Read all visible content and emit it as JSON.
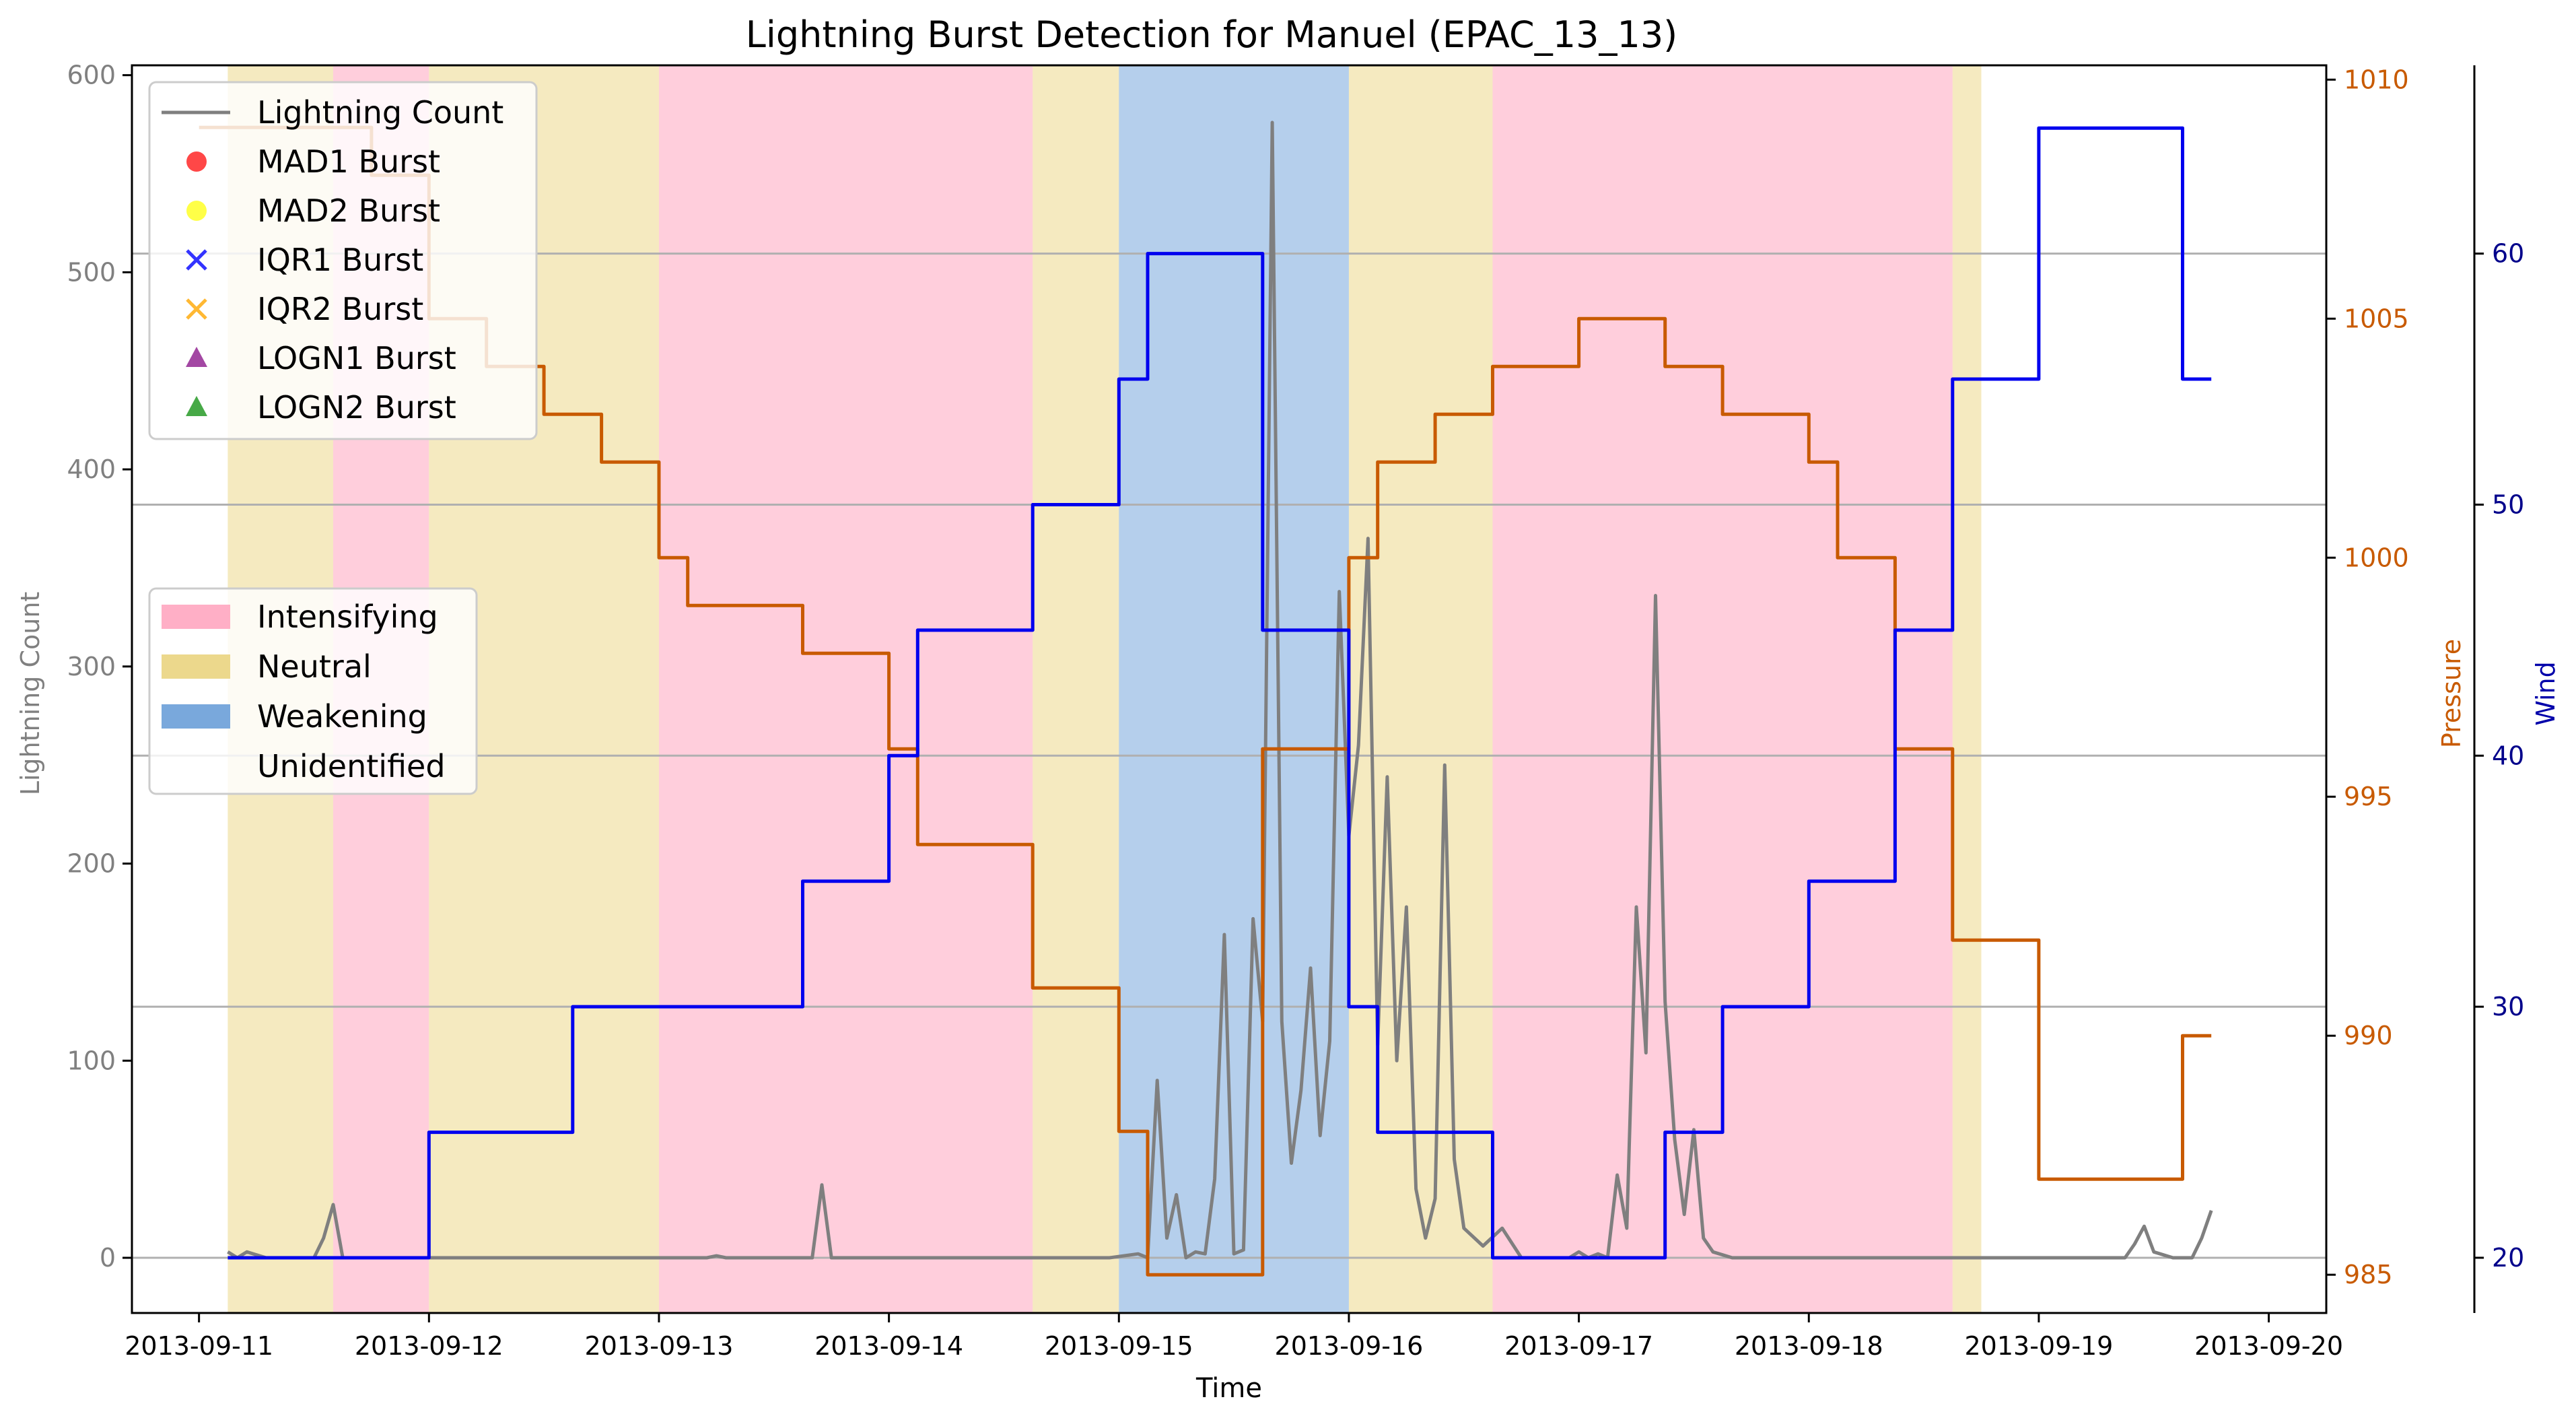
{
  "chart_data": {
    "type": "line",
    "title": "Lightning Burst Detection for Manuel (EPAC_13_13)",
    "xlabel": "Time",
    "ylabel_left": "Lightning Count",
    "ylabel_pressure": "Pressure",
    "ylabel_wind": "Wind",
    "x_domain": [
      "2013-09-10 17:00",
      "2013-09-20 06:00"
    ],
    "x_ticks": [
      "2013-09-11",
      "2013-09-12",
      "2013-09-13",
      "2013-09-14",
      "2013-09-15",
      "2013-09-16",
      "2013-09-17",
      "2013-09-18",
      "2013-09-19",
      "2013-09-20"
    ],
    "left_axis": {
      "ylim": [
        -28,
        605
      ],
      "ticks": [
        0,
        100,
        200,
        300,
        400,
        500,
        600
      ]
    },
    "pressure_axis": {
      "ylim": [
        984.2,
        1010.3
      ],
      "ticks": [
        985,
        990,
        995,
        1000,
        1005,
        1010
      ]
    },
    "wind_axis": {
      "ylim": [
        17.8,
        67.5
      ],
      "ticks": [
        20,
        30,
        40,
        50,
        60
      ]
    },
    "grid": "horizontal lines at wind-axis ticks",
    "colors": {
      "intensifying": "#ffa6c0",
      "neutral": "#ecd88c",
      "weakening": "#79a8dc",
      "lightning": "#7f7f7f",
      "pressure": "#c85a00",
      "wind": "#0000ee",
      "left_axis": "#808080",
      "grid": "#b0b0b0"
    },
    "stages": [
      {
        "stage": "neutral",
        "start": "2013-09-11 03:00",
        "end": "2013-09-11 14:00"
      },
      {
        "stage": "intensifying",
        "start": "2013-09-11 14:00",
        "end": "2013-09-12 00:00"
      },
      {
        "stage": "neutral",
        "start": "2013-09-12 00:00",
        "end": "2013-09-13 00:00"
      },
      {
        "stage": "intensifying",
        "start": "2013-09-13 00:00",
        "end": "2013-09-14 15:00"
      },
      {
        "stage": "neutral",
        "start": "2013-09-14 15:00",
        "end": "2013-09-15 00:00"
      },
      {
        "stage": "weakening",
        "start": "2013-09-15 00:00",
        "end": "2013-09-16 00:00"
      },
      {
        "stage": "neutral",
        "start": "2013-09-16 00:00",
        "end": "2013-09-16 15:00"
      },
      {
        "stage": "intensifying",
        "start": "2013-09-16 15:00",
        "end": "2013-09-18 15:00"
      },
      {
        "stage": "neutral",
        "start": "2013-09-18 15:00",
        "end": "2013-09-18 18:00"
      }
    ],
    "series": [
      {
        "name": "Lightning Count",
        "axis": "left",
        "points": [
          [
            "2013-09-11 03:00",
            3
          ],
          [
            "2013-09-11 04:00",
            0
          ],
          [
            "2013-09-11 05:00",
            3
          ],
          [
            "2013-09-11 07:00",
            0
          ],
          [
            "2013-09-11 12:00",
            0
          ],
          [
            "2013-09-11 13:00",
            10
          ],
          [
            "2013-09-11 14:00",
            27
          ],
          [
            "2013-09-11 15:00",
            0
          ],
          [
            "2013-09-12 12:00",
            0
          ],
          [
            "2013-09-13 05:00",
            0
          ],
          [
            "2013-09-13 06:00",
            1
          ],
          [
            "2013-09-13 07:00",
            0
          ],
          [
            "2013-09-13 16:00",
            0
          ],
          [
            "2013-09-13 17:00",
            37
          ],
          [
            "2013-09-13 18:00",
            0
          ],
          [
            "2013-09-14 14:00",
            0
          ],
          [
            "2013-09-14 23:00",
            0
          ],
          [
            "2013-09-15 02:00",
            2
          ],
          [
            "2013-09-15 03:00",
            0
          ],
          [
            "2013-09-15 04:00",
            90
          ],
          [
            "2013-09-15 05:00",
            10
          ],
          [
            "2013-09-15 06:00",
            32
          ],
          [
            "2013-09-15 07:00",
            0
          ],
          [
            "2013-09-15 08:00",
            3
          ],
          [
            "2013-09-15 09:00",
            2
          ],
          [
            "2013-09-15 10:00",
            40
          ],
          [
            "2013-09-15 11:00",
            164
          ],
          [
            "2013-09-15 12:00",
            2
          ],
          [
            "2013-09-15 13:00",
            4
          ],
          [
            "2013-09-15 14:00",
            172
          ],
          [
            "2013-09-15 15:00",
            120
          ],
          [
            "2013-09-15 16:00",
            576
          ],
          [
            "2013-09-15 17:00",
            120
          ],
          [
            "2013-09-15 18:00",
            48
          ],
          [
            "2013-09-15 19:00",
            85
          ],
          [
            "2013-09-15 20:00",
            147
          ],
          [
            "2013-09-15 21:00",
            62
          ],
          [
            "2013-09-15 22:00",
            110
          ],
          [
            "2013-09-15 23:00",
            338
          ],
          [
            "2013-09-16 00:00",
            214
          ],
          [
            "2013-09-16 01:00",
            260
          ],
          [
            "2013-09-16 02:00",
            365
          ],
          [
            "2013-09-16 03:00",
            108
          ],
          [
            "2013-09-16 04:00",
            244
          ],
          [
            "2013-09-16 05:00",
            100
          ],
          [
            "2013-09-16 06:00",
            178
          ],
          [
            "2013-09-16 07:00",
            35
          ],
          [
            "2013-09-16 08:00",
            10
          ],
          [
            "2013-09-16 09:00",
            30
          ],
          [
            "2013-09-16 10:00",
            250
          ],
          [
            "2013-09-16 11:00",
            50
          ],
          [
            "2013-09-16 12:00",
            15
          ],
          [
            "2013-09-16 14:00",
            6
          ],
          [
            "2013-09-16 16:00",
            15
          ],
          [
            "2013-09-16 18:00",
            0
          ],
          [
            "2013-09-16 23:00",
            0
          ],
          [
            "2013-09-17 00:00",
            3
          ],
          [
            "2013-09-17 01:00",
            0
          ],
          [
            "2013-09-17 02:00",
            2
          ],
          [
            "2013-09-17 03:00",
            0
          ],
          [
            "2013-09-17 04:00",
            42
          ],
          [
            "2013-09-17 05:00",
            15
          ],
          [
            "2013-09-17 06:00",
            178
          ],
          [
            "2013-09-17 07:00",
            104
          ],
          [
            "2013-09-17 08:00",
            336
          ],
          [
            "2013-09-17 09:00",
            130
          ],
          [
            "2013-09-17 10:00",
            60
          ],
          [
            "2013-09-17 11:00",
            22
          ],
          [
            "2013-09-17 12:00",
            65
          ],
          [
            "2013-09-17 13:00",
            10
          ],
          [
            "2013-09-17 14:00",
            3
          ],
          [
            "2013-09-17 16:00",
            0
          ],
          [
            "2013-09-18 16:00",
            0
          ],
          [
            "2013-09-19 09:00",
            0
          ],
          [
            "2013-09-19 10:00",
            7
          ],
          [
            "2013-09-19 11:00",
            16
          ],
          [
            "2013-09-19 12:00",
            3
          ],
          [
            "2013-09-19 14:00",
            0
          ],
          [
            "2013-09-19 16:00",
            0
          ],
          [
            "2013-09-19 17:00",
            10
          ],
          [
            "2013-09-19 18:00",
            24
          ]
        ]
      },
      {
        "name": "Pressure",
        "axis": "pressure",
        "points": [
          [
            "2013-09-11 00:00",
            1009
          ],
          [
            "2013-09-11 18:00",
            1009
          ],
          [
            "2013-09-11 18:00",
            1008
          ],
          [
            "2013-09-12 00:00",
            1008
          ],
          [
            "2013-09-12 00:00",
            1005
          ],
          [
            "2013-09-12 06:00",
            1005
          ],
          [
            "2013-09-12 06:00",
            1004
          ],
          [
            "2013-09-12 12:00",
            1004
          ],
          [
            "2013-09-12 12:00",
            1003
          ],
          [
            "2013-09-12 18:00",
            1003
          ],
          [
            "2013-09-12 18:00",
            1002
          ],
          [
            "2013-09-13 00:00",
            1002
          ],
          [
            "2013-09-13 00:00",
            1000
          ],
          [
            "2013-09-13 03:00",
            1000
          ],
          [
            "2013-09-13 03:00",
            999
          ],
          [
            "2013-09-13 15:00",
            999
          ],
          [
            "2013-09-13 15:00",
            998
          ],
          [
            "2013-09-14 00:00",
            998
          ],
          [
            "2013-09-14 00:00",
            996
          ],
          [
            "2013-09-14 03:00",
            996
          ],
          [
            "2013-09-14 03:00",
            994
          ],
          [
            "2013-09-14 15:00",
            994
          ],
          [
            "2013-09-14 15:00",
            991
          ],
          [
            "2013-09-15 00:00",
            991
          ],
          [
            "2013-09-15 00:00",
            988
          ],
          [
            "2013-09-15 03:00",
            988
          ],
          [
            "2013-09-15 03:00",
            985
          ],
          [
            "2013-09-15 15:00",
            985
          ],
          [
            "2013-09-15 15:00",
            996
          ],
          [
            "2013-09-16 00:00",
            996
          ],
          [
            "2013-09-16 00:00",
            1000
          ],
          [
            "2013-09-16 03:00",
            1000
          ],
          [
            "2013-09-16 03:00",
            1002
          ],
          [
            "2013-09-16 09:00",
            1002
          ],
          [
            "2013-09-16 09:00",
            1003
          ],
          [
            "2013-09-16 15:00",
            1003
          ],
          [
            "2013-09-16 15:00",
            1004
          ],
          [
            "2013-09-17 00:00",
            1004
          ],
          [
            "2013-09-17 00:00",
            1005
          ],
          [
            "2013-09-17 09:00",
            1005
          ],
          [
            "2013-09-17 09:00",
            1004
          ],
          [
            "2013-09-17 15:00",
            1004
          ],
          [
            "2013-09-17 15:00",
            1003
          ],
          [
            "2013-09-18 00:00",
            1003
          ],
          [
            "2013-09-18 00:00",
            1002
          ],
          [
            "2013-09-18 03:00",
            1002
          ],
          [
            "2013-09-18 03:00",
            1000
          ],
          [
            "2013-09-18 09:00",
            1000
          ],
          [
            "2013-09-18 09:00",
            996
          ],
          [
            "2013-09-18 15:00",
            996
          ],
          [
            "2013-09-18 15:00",
            992
          ],
          [
            "2013-09-19 00:00",
            992
          ],
          [
            "2013-09-19 00:00",
            987
          ],
          [
            "2013-09-19 15:00",
            987
          ],
          [
            "2013-09-19 15:00",
            990
          ],
          [
            "2013-09-19 18:00",
            990
          ]
        ]
      },
      {
        "name": "Wind",
        "axis": "wind",
        "points": [
          [
            "2013-09-11 03:00",
            20
          ],
          [
            "2013-09-12 00:00",
            20
          ],
          [
            "2013-09-12 00:00",
            25
          ],
          [
            "2013-09-12 15:00",
            25
          ],
          [
            "2013-09-12 15:00",
            30
          ],
          [
            "2013-09-13 15:00",
            30
          ],
          [
            "2013-09-13 15:00",
            35
          ],
          [
            "2013-09-14 00:00",
            35
          ],
          [
            "2013-09-14 00:00",
            40
          ],
          [
            "2013-09-14 03:00",
            40
          ],
          [
            "2013-09-14 03:00",
            45
          ],
          [
            "2013-09-14 15:00",
            45
          ],
          [
            "2013-09-14 15:00",
            50
          ],
          [
            "2013-09-15 00:00",
            50
          ],
          [
            "2013-09-15 00:00",
            55
          ],
          [
            "2013-09-15 03:00",
            55
          ],
          [
            "2013-09-15 03:00",
            60
          ],
          [
            "2013-09-15 15:00",
            60
          ],
          [
            "2013-09-15 15:00",
            45
          ],
          [
            "2013-09-16 00:00",
            45
          ],
          [
            "2013-09-16 00:00",
            30
          ],
          [
            "2013-09-16 03:00",
            30
          ],
          [
            "2013-09-16 03:00",
            25
          ],
          [
            "2013-09-16 15:00",
            25
          ],
          [
            "2013-09-16 15:00",
            20
          ],
          [
            "2013-09-17 09:00",
            20
          ],
          [
            "2013-09-17 09:00",
            25
          ],
          [
            "2013-09-17 15:00",
            25
          ],
          [
            "2013-09-17 15:00",
            30
          ],
          [
            "2013-09-18 00:00",
            30
          ],
          [
            "2013-09-18 00:00",
            35
          ],
          [
            "2013-09-18 09:00",
            35
          ],
          [
            "2013-09-18 09:00",
            45
          ],
          [
            "2013-09-18 15:00",
            45
          ],
          [
            "2013-09-18 15:00",
            55
          ],
          [
            "2013-09-19 00:00",
            55
          ],
          [
            "2013-09-19 00:00",
            65
          ],
          [
            "2013-09-19 15:00",
            65
          ],
          [
            "2013-09-19 15:00",
            55
          ],
          [
            "2013-09-19 18:00",
            55
          ]
        ]
      }
    ],
    "legend_bursts": {
      "placement": "upper-left",
      "entries": [
        {
          "label": "Lightning Count",
          "marker": "line",
          "color": "#7f7f7f"
        },
        {
          "label": "MAD1 Burst",
          "marker": "circle",
          "color": "#ff3333"
        },
        {
          "label": "MAD2 Burst",
          "marker": "circle",
          "color": "#ffff33"
        },
        {
          "label": "IQR1 Burst",
          "marker": "x",
          "color": "#3333ff"
        },
        {
          "label": "IQR2 Burst",
          "marker": "x",
          "color": "#ffb833"
        },
        {
          "label": "LOGN1 Burst",
          "marker": "triangle",
          "color": "#993399"
        },
        {
          "label": "LOGN2 Burst",
          "marker": "triangle",
          "color": "#33a033"
        }
      ]
    },
    "legend_stages": {
      "placement": "center-left",
      "entries": [
        {
          "label": "Intensifying",
          "color": "#ffa6c0"
        },
        {
          "label": "Neutral",
          "color": "#ecd88c"
        },
        {
          "label": "Weakening",
          "color": "#79a8dc"
        },
        {
          "label": "Unidentified",
          "color": "none"
        }
      ]
    }
  }
}
